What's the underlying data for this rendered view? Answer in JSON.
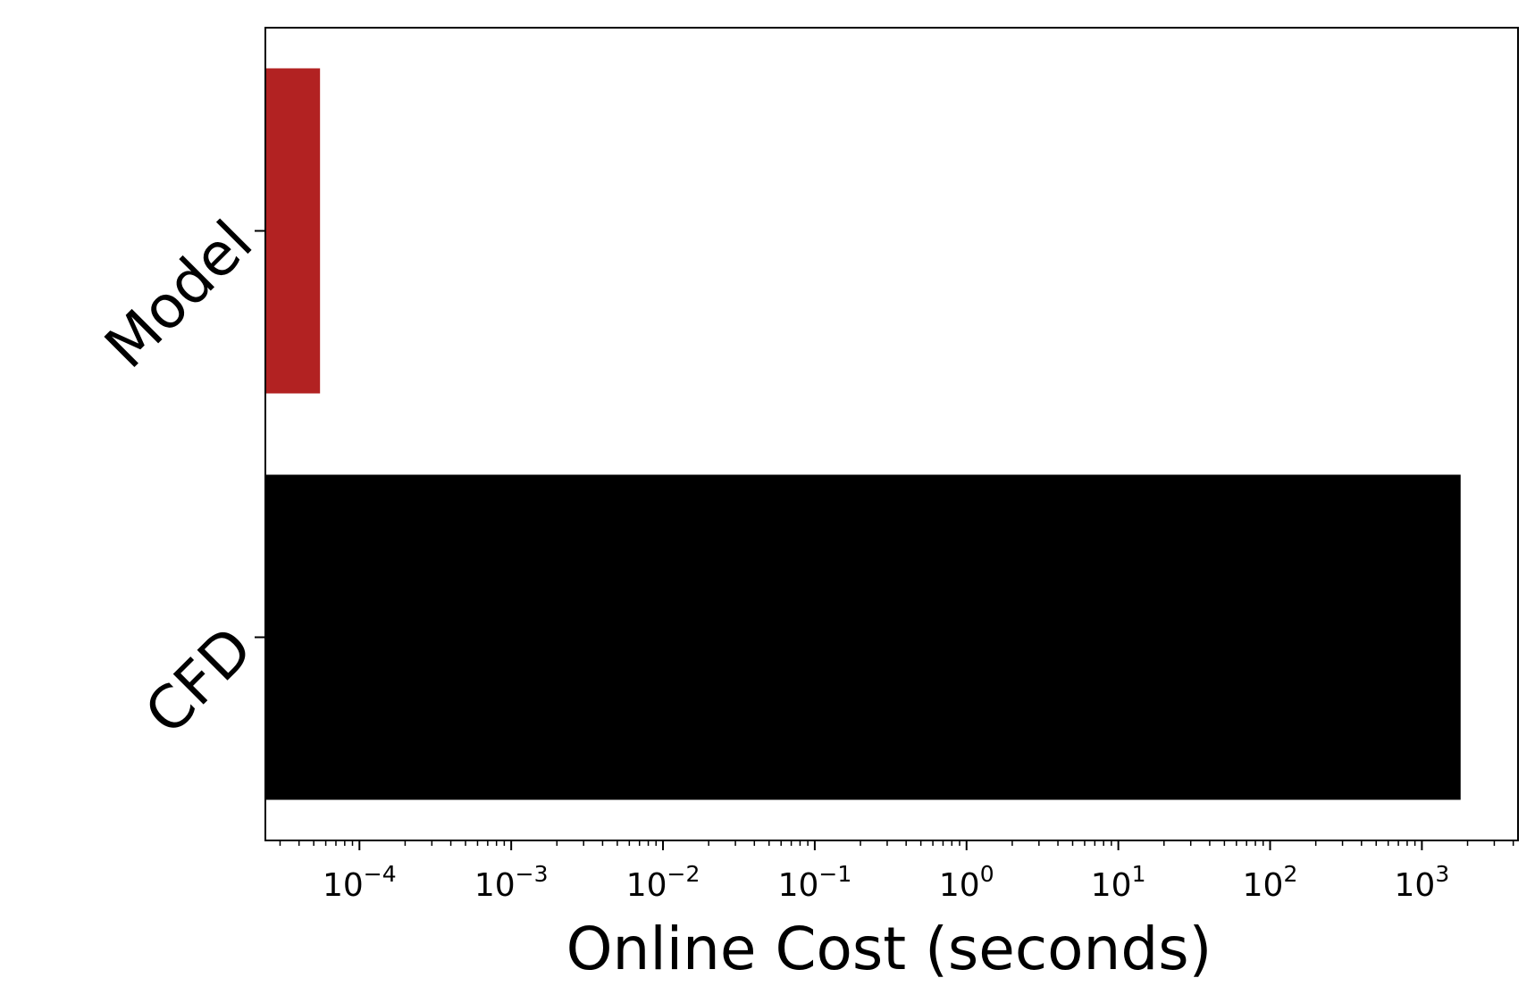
{
  "chart_data": {
    "type": "bar",
    "orientation": "horizontal",
    "categories": [
      "Model",
      "CFD"
    ],
    "values": [
      5.5e-05,
      1800
    ],
    "colors": [
      "#b22222",
      "#000000"
    ],
    "title": "",
    "xlabel": "Online Cost (seconds)",
    "ylabel": "",
    "xscale": "log",
    "xlim": [
      2.4e-05,
      4300
    ],
    "x_ticks": [
      {
        "base": "10",
        "exp": "−4",
        "value": 0.0001
      },
      {
        "base": "10",
        "exp": "−3",
        "value": 0.001
      },
      {
        "base": "10",
        "exp": "−2",
        "value": 0.01
      },
      {
        "base": "10",
        "exp": "−1",
        "value": 0.1
      },
      {
        "base": "10",
        "exp": "0",
        "value": 1
      },
      {
        "base": "10",
        "exp": "1",
        "value": 10
      },
      {
        "base": "10",
        "exp": "2",
        "value": 100
      },
      {
        "base": "10",
        "exp": "3",
        "value": 1000
      }
    ],
    "grid": false,
    "legend": "none"
  }
}
